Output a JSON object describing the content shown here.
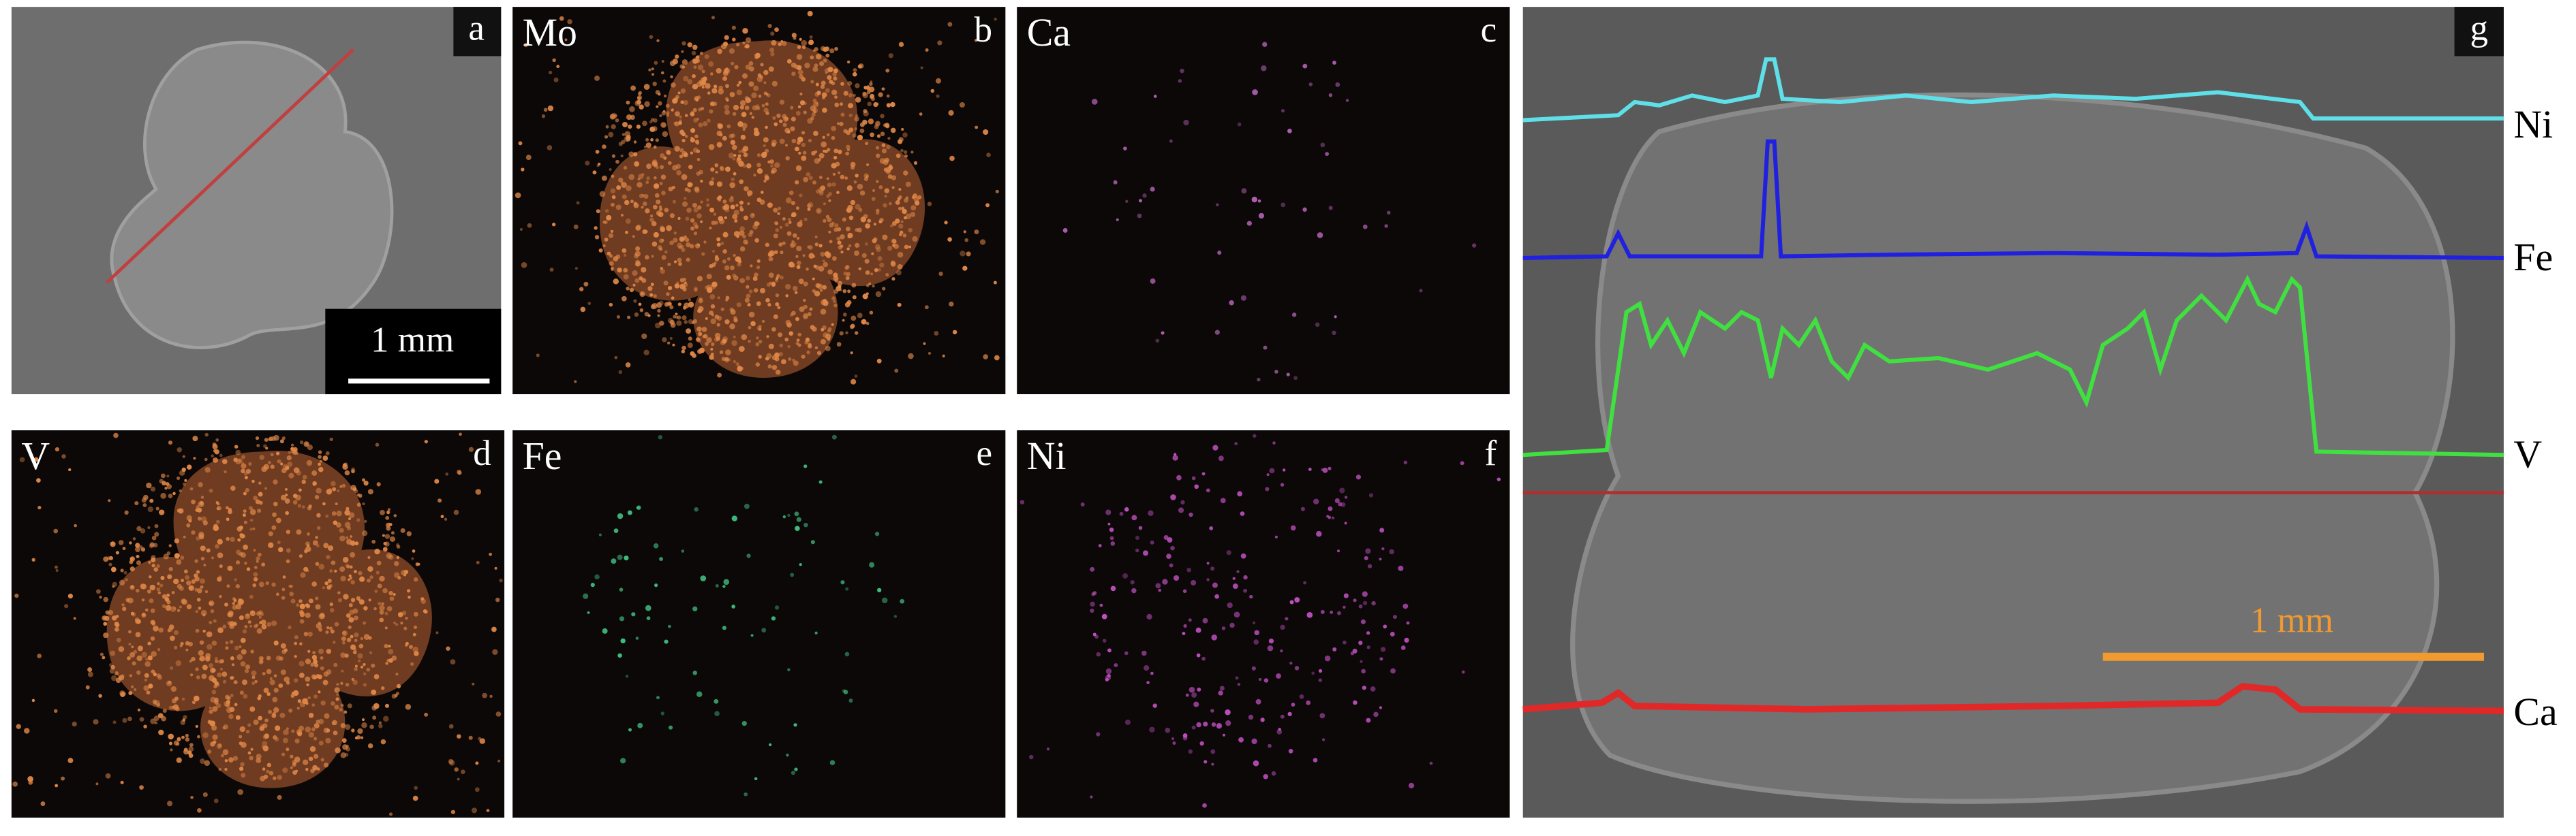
{
  "panels": [
    {
      "letter": "a",
      "scale_bar": "1 mm"
    },
    {
      "letter": "b",
      "element": "Mo"
    },
    {
      "letter": "c",
      "element": "Ca"
    },
    {
      "letter": "d",
      "element": "V"
    },
    {
      "letter": "e",
      "element": "Fe"
    },
    {
      "letter": "f",
      "element": "Ni"
    }
  ],
  "line_scan": {
    "letter": "g",
    "scale_bar": "1 mm",
    "elements": [
      "Ni",
      "Fe",
      "V",
      "Ca"
    ]
  }
}
